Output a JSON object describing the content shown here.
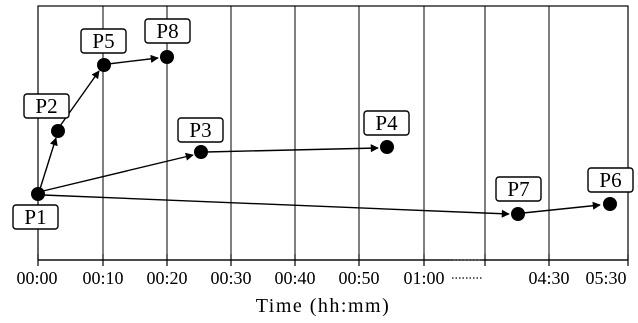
{
  "axis": {
    "title": "Time (hh:mm)",
    "ticks": [
      "00:00",
      "00:10",
      "00:20",
      "00:30",
      "00:40",
      "00:50",
      "01:00",
      "04:30",
      "05:30"
    ],
    "break_after_tick": "01:00"
  },
  "nodes": [
    {
      "id": "P1",
      "label": "P1"
    },
    {
      "id": "P2",
      "label": "P2"
    },
    {
      "id": "P3",
      "label": "P3"
    },
    {
      "id": "P4",
      "label": "P4"
    },
    {
      "id": "P5",
      "label": "P5"
    },
    {
      "id": "P6",
      "label": "P6"
    },
    {
      "id": "P7",
      "label": "P7"
    },
    {
      "id": "P8",
      "label": "P8"
    }
  ],
  "edges": [
    {
      "from": "P1",
      "to": "P2"
    },
    {
      "from": "P2",
      "to": "P5"
    },
    {
      "from": "P5",
      "to": "P8"
    },
    {
      "from": "P1",
      "to": "P3"
    },
    {
      "from": "P3",
      "to": "P4"
    },
    {
      "from": "P1",
      "to": "P7"
    },
    {
      "from": "P7",
      "to": "P6"
    }
  ]
}
